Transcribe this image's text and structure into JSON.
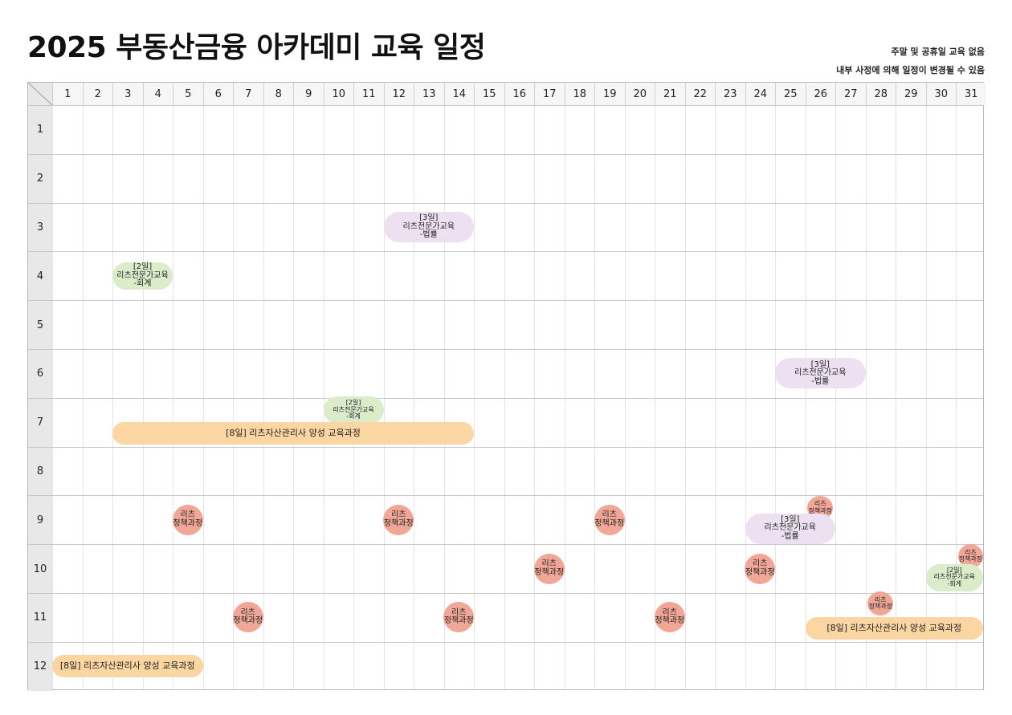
{
  "page": {
    "title": "2025 부동산금융 아카데미 교육 일정",
    "notes": [
      "주말 및 공휴일 교육 없음",
      "내부 사정에 의해 일정이 변경될 수 있음"
    ]
  },
  "calendar": {
    "days": [
      "1",
      "2",
      "3",
      "4",
      "5",
      "6",
      "7",
      "8",
      "9",
      "10",
      "11",
      "12",
      "13",
      "14",
      "15",
      "16",
      "17",
      "18",
      "19",
      "20",
      "21",
      "22",
      "23",
      "24",
      "25",
      "26",
      "27",
      "28",
      "29",
      "30",
      "31"
    ],
    "months": [
      "1",
      "2",
      "3",
      "4",
      "5",
      "6",
      "7",
      "8",
      "9",
      "10",
      "11",
      "12"
    ]
  },
  "colors": {
    "purple": "#ece0f1",
    "green": "#dbeccb",
    "orange": "#fbd6a3",
    "red": "#f0a797",
    "header_bg": "#e8e8e8"
  },
  "events": [
    {
      "month": 3,
      "start": 12,
      "end": 14,
      "kind": "purple",
      "label": "[3일]\n리츠전문가교육\n-법률"
    },
    {
      "month": 4,
      "start": 3,
      "end": 4,
      "kind": "green",
      "label": "[2일]\n리츠전문가교육\n-회계"
    },
    {
      "month": 6,
      "start": 25,
      "end": 27,
      "kind": "purple",
      "label": "[3일]\n리츠전문가교육\n-법률"
    },
    {
      "month": 7,
      "start": 10,
      "end": 11,
      "kind": "green",
      "label": "[2일]\n리츠전문가교육\n-회계"
    },
    {
      "month": 7,
      "start": 3,
      "end": 14,
      "kind": "orange",
      "label": "[8일] 리츠자산관리사 양성 교육과정"
    },
    {
      "month": 9,
      "start": 5,
      "end": 5,
      "kind": "red",
      "label": "리츠\n정책과정"
    },
    {
      "month": 9,
      "start": 12,
      "end": 12,
      "kind": "red",
      "label": "리츠\n정책과정"
    },
    {
      "month": 9,
      "start": 19,
      "end": 19,
      "kind": "red",
      "label": "리츠\n정책과정"
    },
    {
      "month": 9,
      "start": 26,
      "end": 26,
      "kind": "red",
      "label": "리츠\n정책과정"
    },
    {
      "month": 9,
      "start": 24,
      "end": 26,
      "kind": "purple",
      "label": "[3일]\n리츠전문가교육\n-법률"
    },
    {
      "month": 10,
      "start": 17,
      "end": 17,
      "kind": "red",
      "label": "리츠\n정책과정"
    },
    {
      "month": 10,
      "start": 24,
      "end": 24,
      "kind": "red",
      "label": "리츠\n정책과정"
    },
    {
      "month": 10,
      "start": 31,
      "end": 31,
      "kind": "red",
      "label": "리츠\n정책과정"
    },
    {
      "month": 10,
      "start": 30,
      "end": 31,
      "kind": "green",
      "label": "[2일]\n리츠전문가교육\n-회계"
    },
    {
      "month": 11,
      "start": 7,
      "end": 7,
      "kind": "red",
      "label": "리츠\n정책과정"
    },
    {
      "month": 11,
      "start": 14,
      "end": 14,
      "kind": "red",
      "label": "리츠\n정책과정"
    },
    {
      "month": 11,
      "start": 21,
      "end": 21,
      "kind": "red",
      "label": "리츠\n정책과정"
    },
    {
      "month": 11,
      "start": 28,
      "end": 28,
      "kind": "red",
      "label": "리츠\n정책과정"
    },
    {
      "month": 11,
      "start": 26,
      "end": 31,
      "kind": "orange",
      "label": "[8일] 리츠자산관리사 양성 교육과정"
    },
    {
      "month": 12,
      "start": 1,
      "end": 5,
      "kind": "orange",
      "label": "[8일] 리츠자산관리사 양성 교육과정"
    }
  ]
}
